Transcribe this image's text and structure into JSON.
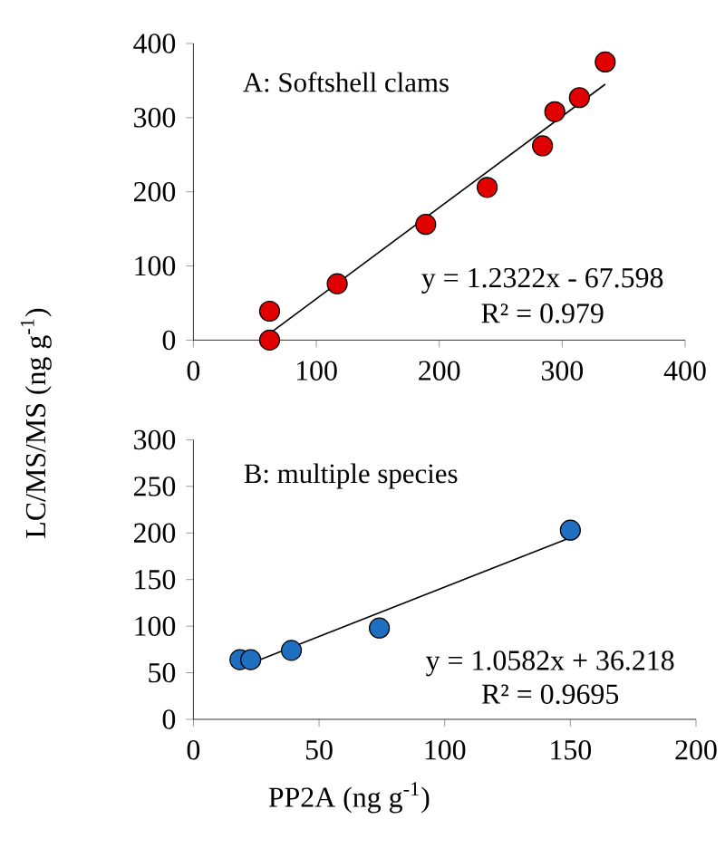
{
  "chart_data": [
    {
      "type": "scatter",
      "title": "A: Softshell clams",
      "ylabel": "LC/MS/MS (ng g$^{-1}$)",
      "marker": "circle",
      "xlim": [
        0,
        400
      ],
      "xticks": [
        0,
        100,
        200,
        300,
        400
      ],
      "ylim": [
        0,
        400
      ],
      "yticks": [
        0,
        100,
        200,
        300,
        400
      ],
      "series": [
        {
          "color": "#e00000",
          "x": [
            62,
            62,
            117,
            189,
            239,
            284,
            294,
            314,
            335
          ],
          "values": [
            39,
            0,
            76,
            156,
            206,
            262,
            308,
            327,
            375
          ]
        },
        {
          "type": "line",
          "marker": "none",
          "color": "#000000",
          "x": [
            62,
            335
          ],
          "values": [
            9,
            345
          ]
        }
      ],
      "annotations": [
        "y = 1.2322x - 67.598",
        "R² = 0.979"
      ]
    },
    {
      "type": "scatter",
      "title": "B: multiple species",
      "xlabel": "PP2A (ng g$^{-1}$)",
      "marker": "circle",
      "xlim": [
        0,
        200
      ],
      "xticks": [
        0,
        50,
        100,
        150,
        200
      ],
      "ylim": [
        0,
        300
      ],
      "yticks": [
        0,
        50,
        100,
        150,
        200,
        250,
        300
      ],
      "series": [
        {
          "color": "#1f6fc0",
          "x": [
            18.5,
            22.8,
            39,
            74,
            150
          ],
          "values": [
            64,
            64,
            74,
            98,
            203
          ]
        },
        {
          "type": "line",
          "marker": "none",
          "color": "#000000",
          "x": [
            20,
            150
          ],
          "values": [
            57,
            195
          ]
        }
      ],
      "annotations": [
        "y = 1.0582x + 36.218",
        "R² = 0.9695"
      ]
    }
  ]
}
